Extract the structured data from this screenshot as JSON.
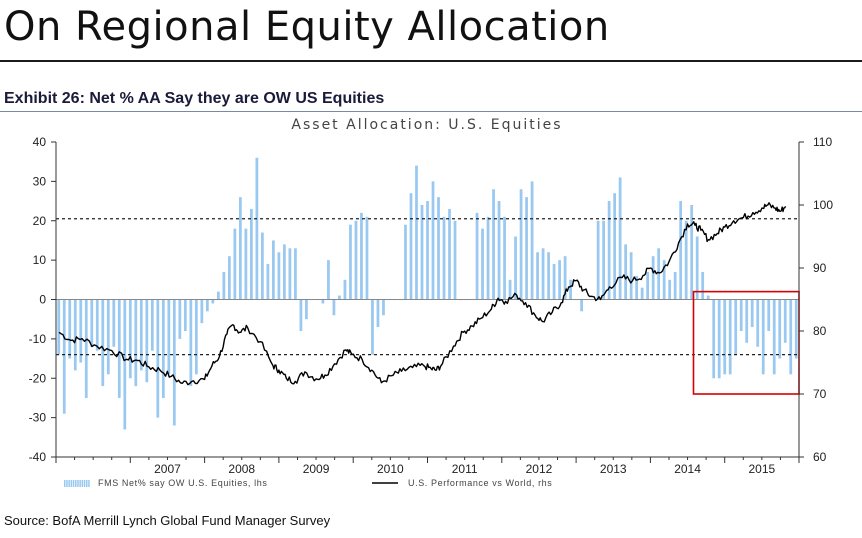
{
  "header": {
    "title": "On Regional Equity Allocation",
    "exhibit": "Exhibit 26: Net % AA Say they are OW US Equities"
  },
  "source": "Source: BofA Merrill Lynch Global Fund Manager Survey",
  "colors": {
    "bars": "#99c8f0",
    "line": "#000000",
    "highlight": "#d90000",
    "axis": "#333333"
  },
  "chart_data": {
    "type": "bar+line",
    "title": "Asset Allocation: U.S. Equities",
    "x_tick_labels": [
      "2007",
      "2008",
      "2009",
      "2010",
      "2011",
      "2012",
      "2013",
      "2014",
      "2015"
    ],
    "x_range": [
      2006.0,
      2016.0
    ],
    "y_left": {
      "range": [
        -40,
        40
      ],
      "ticks": [
        40,
        30,
        20,
        10,
        0,
        -10,
        -20,
        -30,
        -40
      ]
    },
    "y_right": {
      "range": [
        60,
        110
      ],
      "ticks": [
        110,
        100,
        90,
        80,
        70,
        60
      ]
    },
    "reference_lines_left": [
      20.5,
      -14
    ],
    "highlight_box": {
      "x_start": 2014.58,
      "x_end": 2016.0,
      "y_top": 2,
      "y_bottom": -24
    },
    "series": [
      {
        "name": "FMS Net% say OW U.S. Equities, lhs",
        "type": "bar",
        "axis": "left",
        "values": [
          -14,
          -29,
          -15,
          -18,
          -16,
          -25,
          -12,
          -13,
          -22,
          -19,
          -12,
          -25,
          -33,
          -20,
          -22,
          -18,
          -21,
          -13,
          -30,
          -25,
          -19,
          -32,
          -10,
          -8,
          -22,
          -19,
          -6,
          -3,
          -1,
          2,
          7,
          11,
          18,
          26,
          18,
          23,
          36,
          17,
          9,
          15,
          12,
          14,
          13,
          13,
          -8,
          -5,
          0,
          0,
          -1,
          10,
          -4,
          1,
          5,
          19,
          20,
          22,
          21,
          -14,
          -7,
          -4,
          0,
          0,
          0,
          19,
          27,
          34,
          24,
          25,
          30,
          26,
          21,
          23,
          20,
          0,
          0,
          0,
          22,
          18,
          21,
          28,
          25,
          21,
          5,
          16,
          28,
          26,
          30,
          12,
          13,
          12,
          9,
          10,
          11,
          5,
          0,
          -3,
          0,
          0,
          20,
          20,
          25,
          27,
          31,
          14,
          12,
          6,
          3,
          7,
          11,
          13,
          10,
          5,
          7,
          25,
          20,
          24,
          16,
          7,
          1,
          -20,
          -20,
          -19,
          -19,
          -14,
          -8,
          -11,
          -7,
          -12,
          -19,
          -8,
          -19,
          -15,
          -11,
          -19,
          -15
        ]
      },
      {
        "name": "U.S. Performance vs World, rhs",
        "type": "line",
        "axis": "right",
        "points": [
          [
            2006.04,
            79.8
          ],
          [
            2006.2,
            78.5
          ],
          [
            2006.35,
            78.8
          ],
          [
            2006.55,
            77.6
          ],
          [
            2006.75,
            76.9
          ],
          [
            2006.95,
            75.5
          ],
          [
            2007.1,
            75.3
          ],
          [
            2007.25,
            74.3
          ],
          [
            2007.4,
            73.8
          ],
          [
            2007.55,
            72.8
          ],
          [
            2007.7,
            71.7
          ],
          [
            2007.85,
            72.1
          ],
          [
            2008.0,
            72.3
          ],
          [
            2008.1,
            74.5
          ],
          [
            2008.2,
            76.0
          ],
          [
            2008.3,
            79.5
          ],
          [
            2008.38,
            81.0
          ],
          [
            2008.47,
            79.8
          ],
          [
            2008.58,
            80.5
          ],
          [
            2008.75,
            78.3
          ],
          [
            2008.92,
            74.5
          ],
          [
            2009.0,
            73.8
          ],
          [
            2009.1,
            72.5
          ],
          [
            2009.22,
            72.0
          ],
          [
            2009.35,
            73.5
          ],
          [
            2009.5,
            72.4
          ],
          [
            2009.62,
            73.0
          ],
          [
            2009.75,
            74.8
          ],
          [
            2009.9,
            77.0
          ],
          [
            2009.98,
            76.3
          ],
          [
            2010.12,
            75.5
          ],
          [
            2010.25,
            73.8
          ],
          [
            2010.38,
            71.8
          ],
          [
            2010.52,
            72.9
          ],
          [
            2010.65,
            73.6
          ],
          [
            2010.8,
            74.2
          ],
          [
            2010.95,
            74.5
          ],
          [
            2011.05,
            74.0
          ],
          [
            2011.12,
            73.8
          ],
          [
            2011.2,
            74.8
          ],
          [
            2011.35,
            77.6
          ],
          [
            2011.48,
            79.8
          ],
          [
            2011.6,
            80.8
          ],
          [
            2011.72,
            82.0
          ],
          [
            2011.86,
            83.5
          ],
          [
            2011.95,
            85.2
          ],
          [
            2012.05,
            84.7
          ],
          [
            2012.2,
            85.7
          ],
          [
            2012.32,
            84.5
          ],
          [
            2012.45,
            82.5
          ],
          [
            2012.55,
            81.5
          ],
          [
            2012.68,
            83.0
          ],
          [
            2012.8,
            84.5
          ],
          [
            2012.9,
            87.0
          ],
          [
            2013.0,
            88.0
          ],
          [
            2013.1,
            86.5
          ],
          [
            2013.2,
            85.5
          ],
          [
            2013.33,
            85.0
          ],
          [
            2013.45,
            87.0
          ],
          [
            2013.62,
            88.5
          ],
          [
            2013.76,
            88.0
          ],
          [
            2013.9,
            88.8
          ],
          [
            2014.0,
            90.0
          ],
          [
            2014.12,
            89.2
          ],
          [
            2014.25,
            91.0
          ],
          [
            2014.38,
            94.0
          ],
          [
            2014.5,
            97.0
          ],
          [
            2014.6,
            96.8
          ],
          [
            2014.68,
            96.0
          ],
          [
            2014.78,
            94.5
          ],
          [
            2014.9,
            95.5
          ],
          [
            2015.0,
            96.5
          ],
          [
            2015.12,
            97.5
          ],
          [
            2015.25,
            98.0
          ],
          [
            2015.38,
            98.8
          ],
          [
            2015.5,
            99.5
          ],
          [
            2015.58,
            100.0
          ],
          [
            2015.68,
            99.5
          ],
          [
            2015.75,
            99.0
          ],
          [
            2015.82,
            99.8
          ]
        ]
      }
    ],
    "legend": [
      "FMS Net% say OW U.S. Equities, lhs",
      "U.S. Performance vs World, rhs"
    ]
  }
}
